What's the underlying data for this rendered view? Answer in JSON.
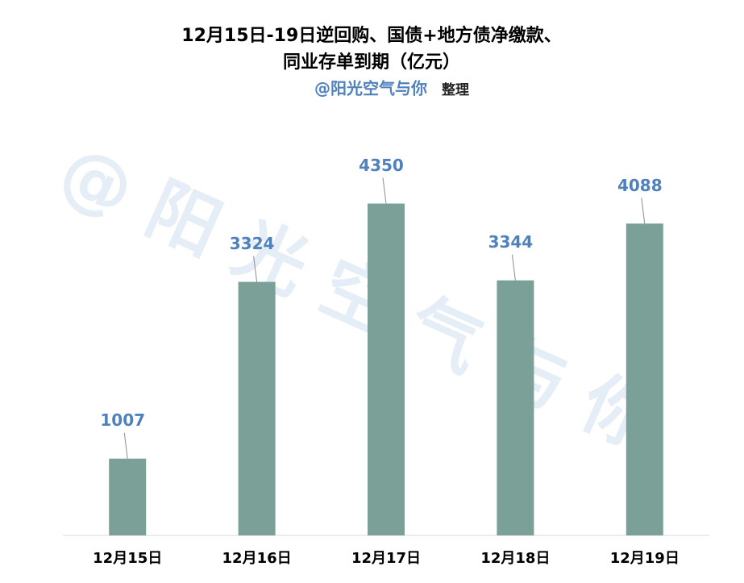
{
  "chart_data": {
    "type": "bar",
    "title": [
      "12月15日-19日逆回购、国债+地方债净缴款、",
      "同业存单到期（亿元）"
    ],
    "subtitle": [
      "@阳光空气与你",
      "整理"
    ],
    "watermark": "@阳光空气与你",
    "categories": [
      "12月15日",
      "12月16日",
      "12月17日",
      "12月18日",
      "12月19日"
    ],
    "values": [
      1007,
      3324,
      4350,
      3344,
      4088
    ],
    "color": "#7ba098",
    "label_color": "#4f81bd",
    "ylim": [
      0,
      5000
    ],
    "grid": false
  }
}
